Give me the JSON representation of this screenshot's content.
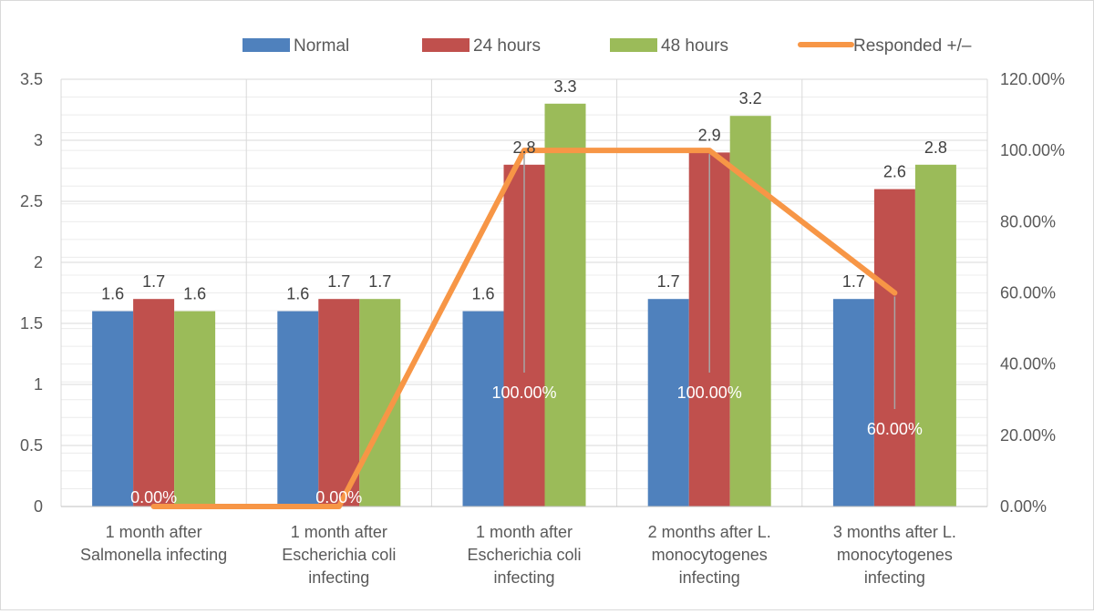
{
  "chart_data": {
    "type": "bar",
    "categories": [
      [
        "1 month after",
        "Salmonella infecting"
      ],
      [
        "1 month after",
        "Escherichia coli",
        "infecting"
      ],
      [
        "1 month after",
        "Escherichia coli",
        "infecting"
      ],
      [
        "2 months after L.",
        "monocytogenes",
        "infecting"
      ],
      [
        "3 months after L.",
        "monocytogenes",
        "infecting"
      ]
    ],
    "series": [
      {
        "name": "Normal",
        "color": "#4f81bd",
        "values": [
          1.6,
          1.6,
          1.6,
          1.7,
          1.7
        ],
        "labels": [
          "1.6",
          "1.6",
          "1.6",
          "1.7",
          "1.7"
        ]
      },
      {
        "name": "24 hours",
        "color": "#c0504d",
        "values": [
          1.7,
          1.7,
          2.8,
          2.9,
          2.6
        ],
        "labels": [
          "1.7",
          "1.7",
          "2.8",
          "2.9",
          "2.6"
        ]
      },
      {
        "name": "48 hours",
        "color": "#9bbb59",
        "values": [
          1.6,
          1.7,
          3.3,
          3.2,
          2.8
        ],
        "labels": [
          "1.6",
          "1.7",
          "3.3",
          "3.2",
          "2.8"
        ]
      }
    ],
    "line_series": {
      "name": "Responded +/–",
      "color": "#f79646",
      "axis": "secondary",
      "values": [
        0.0,
        0.0,
        1.0,
        1.0,
        0.6
      ],
      "labels": [
        "0.00%",
        "0.00%",
        "100.00%",
        "100.00%",
        "60.00%"
      ]
    },
    "y_axis": {
      "min": 0,
      "max": 3.5,
      "ticks": [
        "0",
        "0.5",
        "1",
        "1.5",
        "2",
        "2.5",
        "3",
        "3.5"
      ]
    },
    "y2_axis": {
      "min": 0,
      "max": 1.2,
      "ticks": [
        "0.00%",
        "20.00%",
        "40.00%",
        "60.00%",
        "80.00%",
        "100.00%",
        "120.00%"
      ]
    },
    "legend_position": "top",
    "grid": true
  }
}
